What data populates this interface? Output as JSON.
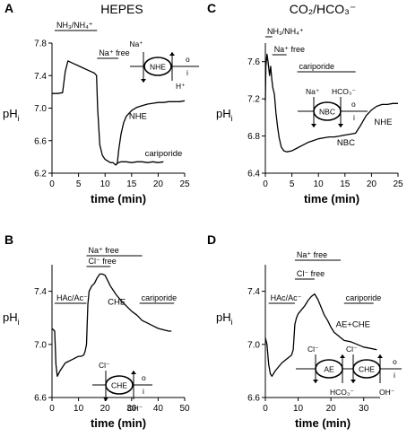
{
  "chart_data": [
    {
      "type": "line",
      "panel_label": "A",
      "title": "HEPES",
      "xlabel": "time (min)",
      "ylabel": "pH",
      "ylabel_sub": "i",
      "xlim": [
        0,
        25
      ],
      "ylim": [
        6.2,
        7.8
      ],
      "xticks": [
        0,
        5,
        10,
        15,
        20,
        25
      ],
      "yticks": [
        6.2,
        6.6,
        7.0,
        7.4,
        7.8
      ],
      "grid": false,
      "bars": [
        {
          "label": "NH₃/NH₄⁺",
          "x0": 0.5,
          "x1": 8.5,
          "level": 1
        },
        {
          "label": "Na⁺ free",
          "x0": 8.5,
          "x1": 12.5,
          "level": 2
        }
      ],
      "series": [
        {
          "name": "NHE",
          "x": [
            0,
            1,
            2,
            2.5,
            3,
            4,
            5,
            6,
            7,
            8,
            8.4,
            8.6,
            9,
            9.5,
            10,
            10.5,
            11,
            11.5,
            12,
            12.3,
            12.6,
            13,
            13.5,
            14,
            15,
            16,
            17,
            18,
            19,
            20,
            21,
            22,
            23,
            24,
            25
          ],
          "y": [
            7.18,
            7.18,
            7.19,
            7.45,
            7.58,
            7.55,
            7.52,
            7.49,
            7.46,
            7.43,
            7.4,
            7.0,
            6.55,
            6.42,
            6.37,
            6.35,
            6.33,
            6.33,
            6.3,
            6.32,
            6.5,
            6.68,
            6.82,
            6.9,
            6.97,
            7.01,
            7.03,
            7.05,
            7.06,
            7.07,
            7.07,
            7.08,
            7.08,
            7.08,
            7.09
          ]
        },
        {
          "name": "cariporide",
          "x": [
            12,
            12.5,
            13,
            14,
            15,
            16,
            17,
            18,
            19,
            20,
            21
          ],
          "y": [
            6.3,
            6.33,
            6.34,
            6.34,
            6.33,
            6.34,
            6.34,
            6.33,
            6.34,
            6.33,
            6.34
          ]
        }
      ],
      "annotations": [
        {
          "text": "NHE",
          "x": 14.5,
          "y": 6.87
        },
        {
          "text": "cariporide",
          "x": 17.5,
          "y": 6.41
        }
      ],
      "schematic": {
        "transporter": "NHE",
        "ion_in": "Na⁺",
        "ion_out": "H⁺",
        "side_out": "o",
        "side_in": "i"
      }
    },
    {
      "type": "line",
      "panel_label": "C",
      "title": "CO₂/HCO₃⁻",
      "xlabel": "time (min)",
      "ylabel": "pH",
      "ylabel_sub": "i",
      "xlim": [
        0,
        25
      ],
      "ylim": [
        6.4,
        7.8
      ],
      "xticks": [
        0,
        5,
        10,
        15,
        20,
        25
      ],
      "yticks": [
        6.4,
        6.8,
        7.2,
        7.6
      ],
      "grid": false,
      "bars": [
        {
          "label": "NH₃/NH₄⁺",
          "x0": 0,
          "x1": 1.3,
          "level": 1
        },
        {
          "label": "Na⁺ free",
          "x0": 1.3,
          "x1": 4,
          "level": 2
        },
        {
          "label": "cariporide",
          "x0": 6,
          "x1": 17,
          "level": 3
        }
      ],
      "series": [
        {
          "name": "NBC/NHE",
          "x": [
            0,
            0.1,
            0.3,
            0.5,
            0.8,
            1,
            1.2,
            1.4,
            1.7,
            2,
            2.3,
            2.6,
            3,
            3.5,
            4,
            5,
            6,
            7,
            8,
            9,
            10,
            11,
            12,
            13,
            14,
            15,
            16,
            17,
            18,
            19,
            20,
            21,
            22,
            23,
            24,
            25
          ],
          "y": [
            7.18,
            7.55,
            7.68,
            7.6,
            7.45,
            7.55,
            7.42,
            7.32,
            7.25,
            7.05,
            6.9,
            6.78,
            6.68,
            6.64,
            6.63,
            6.64,
            6.67,
            6.7,
            6.73,
            6.75,
            6.77,
            6.78,
            6.79,
            6.79,
            6.8,
            6.81,
            6.82,
            6.83,
            6.92,
            7.02,
            7.08,
            7.12,
            7.14,
            7.14,
            7.15,
            7.15
          ]
        }
      ],
      "annotations": [
        {
          "text": "NBC",
          "x": 13.5,
          "y": 6.7
        },
        {
          "text": "NHE",
          "x": 20.5,
          "y": 6.92
        }
      ],
      "schematic": {
        "transporter": "NBC",
        "ion_in": "Na⁺",
        "ion_in2": "HCO₃⁻",
        "side_out": "o",
        "side_in": "i"
      }
    },
    {
      "type": "line",
      "panel_label": "B",
      "title": "",
      "xlabel": "time (min)",
      "ylabel": "pH",
      "ylabel_sub": "i",
      "xlim": [
        0,
        50
      ],
      "ylim": [
        6.6,
        7.6
      ],
      "xticks": [
        0,
        10,
        20,
        30,
        40,
        50
      ],
      "yticks": [
        6.6,
        7.0,
        7.4
      ],
      "grid": false,
      "bars": [
        {
          "label": "HAc/Ac⁻",
          "x0": 1,
          "x1": 13,
          "level": 1
        },
        {
          "label": "Cl⁻ free",
          "x0": 13,
          "x1": 22,
          "level": 2
        },
        {
          "label": "Na⁺ free",
          "x0": 13,
          "x1": 34,
          "level": 3
        },
        {
          "label": "cariporide",
          "x0": 33,
          "x1": 46,
          "level": 1
        }
      ],
      "series": [
        {
          "name": "CHE",
          "x": [
            0,
            1,
            1.5,
            2,
            3,
            4,
            5,
            6,
            7,
            8,
            9,
            10,
            11,
            12,
            12.5,
            13,
            13.5,
            14,
            15,
            16,
            17,
            18,
            19,
            20,
            21,
            22,
            24,
            26,
            28,
            30,
            32,
            34,
            36,
            38,
            40,
            42,
            44,
            45
          ],
          "y": [
            7.12,
            7.1,
            6.85,
            6.76,
            6.8,
            6.83,
            6.86,
            6.87,
            6.88,
            6.89,
            6.9,
            6.91,
            6.91,
            6.92,
            6.95,
            7.0,
            7.3,
            7.4,
            7.44,
            7.46,
            7.5,
            7.53,
            7.53,
            7.52,
            7.48,
            7.44,
            7.38,
            7.33,
            7.29,
            7.25,
            7.22,
            7.18,
            7.16,
            7.14,
            7.12,
            7.11,
            7.1,
            7.1
          ]
        }
      ],
      "annotations": [
        {
          "text": "CHE",
          "x": 21,
          "y": 7.3
        }
      ],
      "schematic": {
        "transporter": "CHE",
        "ion_in": "Cl⁻",
        "ion_out": "OH⁻",
        "side_out": "o",
        "side_in": "i"
      }
    },
    {
      "type": "line",
      "panel_label": "D",
      "title": "",
      "xlabel": "time (min)",
      "ylabel": "pH",
      "ylabel_sub": "i",
      "xlim": [
        0,
        35
      ],
      "ylim": [
        6.6,
        7.6
      ],
      "xticks": [
        0,
        10,
        20,
        30
      ],
      "yticks": [
        6.6,
        7.0,
        7.4
      ],
      "grid": false,
      "bars": [
        {
          "label": "HAc/Ac⁻",
          "x0": 1,
          "x1": 9,
          "level": 1
        },
        {
          "label": "Cl⁻ free",
          "x0": 9,
          "x1": 15,
          "level": 2
        },
        {
          "label": "Na⁺ free",
          "x0": 9,
          "x1": 23,
          "level": 3
        },
        {
          "label": "cariporide",
          "x0": 24,
          "x1": 33,
          "level": 1
        }
      ],
      "series": [
        {
          "name": "AE+CHE",
          "x": [
            0,
            0.5,
            1,
            1.5,
            2,
            3,
            4,
            5,
            6,
            7,
            8,
            8.5,
            9,
            9.5,
            10,
            11,
            12,
            13,
            14,
            15,
            16,
            17,
            18,
            19,
            20,
            21,
            22,
            23,
            24,
            26,
            28,
            30,
            32,
            34
          ],
          "y": [
            7.05,
            7.0,
            6.85,
            6.78,
            6.76,
            6.8,
            6.83,
            6.86,
            6.88,
            6.9,
            6.92,
            6.96,
            7.15,
            7.2,
            7.23,
            7.26,
            7.29,
            7.33,
            7.36,
            7.38,
            7.34,
            7.28,
            7.22,
            7.18,
            7.13,
            7.09,
            7.07,
            7.05,
            7.03,
            7.02,
            7.0,
            6.98,
            6.97,
            6.96
          ]
        }
      ],
      "annotations": [
        {
          "text": "AE+CHE",
          "x": 21.5,
          "y": 7.13
        }
      ],
      "schematic": {
        "transporter1": "AE",
        "transporter2": "CHE",
        "ion_in_ae": "Cl⁻",
        "ion_out_ae": "HCO₃⁻",
        "ion_in_che": "Cl⁻",
        "ion_out_che": "OH⁻",
        "side_out": "o",
        "side_in": "i"
      }
    }
  ]
}
